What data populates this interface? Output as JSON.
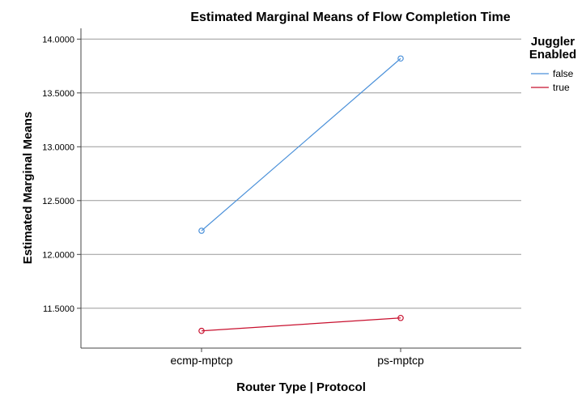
{
  "chart_data": {
    "type": "line",
    "title": "Estimated Marginal Means of Flow Completion Time",
    "xlabel": "Router Type | Protocol",
    "ylabel": "Estimated Marginal Means",
    "categories": [
      "ecmp-mptcp",
      "ps-mptcp"
    ],
    "yticks": [
      "11.5000",
      "12.0000",
      "12.5000",
      "13.0000",
      "13.5000",
      "14.0000"
    ],
    "ylim": [
      11.13,
      14.1
    ],
    "grid": true,
    "legend": {
      "title_lines": [
        "Juggler",
        "Enabled"
      ],
      "placement": "top-right"
    },
    "series": [
      {
        "name": "false",
        "color": "#4a90d9",
        "values": [
          12.22,
          13.82
        ]
      },
      {
        "name": "true",
        "color": "#c8102e",
        "values": [
          11.29,
          11.41
        ]
      }
    ]
  }
}
